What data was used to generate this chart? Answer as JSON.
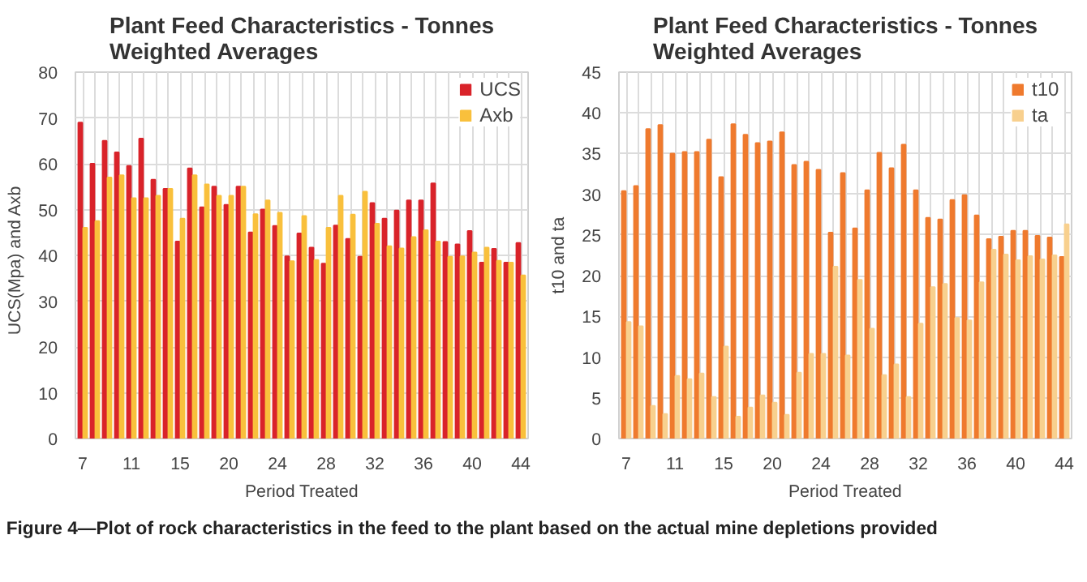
{
  "chart_data": [
    {
      "type": "bar",
      "title": "Plant Feed Characteristics - Tonnes\nWeighted Averages",
      "xlabel": "Period Treated",
      "ylabel": "UCS(Mpa)  and  Axb",
      "categories": [
        "7",
        null,
        null,
        null,
        "11",
        null,
        null,
        null,
        "15",
        null,
        null,
        null,
        "20",
        null,
        null,
        null,
        "24",
        null,
        null,
        null,
        "28",
        null,
        null,
        null,
        "32",
        null,
        null,
        null,
        "36",
        null,
        null,
        null,
        "40",
        null,
        null,
        null,
        "44"
      ],
      "series": [
        {
          "name": "UCS",
          "color": "#d9232a",
          "values": [
            69,
            60,
            65,
            62.5,
            59.5,
            65.5,
            56.5,
            54.5,
            43,
            59,
            50.5,
            55,
            51,
            55,
            45,
            50,
            46.4,
            39.8,
            44.8,
            41.7,
            38.2,
            46.5,
            43.6,
            39.7,
            51.4,
            48,
            49.8,
            52,
            52,
            55.7,
            42.9,
            42.4,
            45.3,
            38.4,
            41.4,
            38.4,
            42.7
          ]
        },
        {
          "name": "Axb",
          "color": "#f9c03c",
          "values": [
            46,
            47.5,
            57,
            57.5,
            52.5,
            52.5,
            53,
            54.5,
            48,
            57.5,
            55.5,
            53,
            53,
            55,
            49,
            52,
            49.3,
            38.7,
            48.6,
            39,
            46,
            53,
            48.9,
            53.9,
            46.9,
            42,
            41.5,
            44,
            45.5,
            43,
            39.7,
            39.8,
            40.6,
            41.7,
            38.8,
            38.4,
            35.6
          ]
        }
      ],
      "ylim": [
        0,
        80
      ],
      "yticks": [
        0,
        10,
        20,
        30,
        40,
        50,
        60,
        70,
        80
      ],
      "grid": true,
      "legend": "top right"
    },
    {
      "type": "bar",
      "title": "Plant Feed Characteristics - Tonnes\nWeighted Averages",
      "xlabel": "Period Treated",
      "ylabel": "t10 and ta",
      "categories": [
        "7",
        null,
        null,
        null,
        "11",
        null,
        null,
        null,
        "15",
        null,
        null,
        null,
        "20",
        null,
        null,
        null,
        "24",
        null,
        null,
        null,
        "28",
        null,
        null,
        null,
        "32",
        null,
        null,
        null,
        "36",
        null,
        null,
        null,
        "40",
        null,
        null,
        null,
        "44"
      ],
      "series": [
        {
          "name": "t10",
          "color": "#ef7a2e",
          "values": [
            30.4,
            31,
            38,
            38.5,
            35,
            35.2,
            35.2,
            36.7,
            32.1,
            38.6,
            37.3,
            36.3,
            36.5,
            37.6,
            33.6,
            34,
            33,
            25.3,
            32.6,
            25.8,
            30.5,
            35.1,
            33.2,
            36.1,
            30.5,
            27.1,
            26.9,
            29.3,
            29.9,
            27.4,
            24.5,
            24.8,
            25.5,
            25.5,
            24.9,
            24.7,
            22.3
          ]
        },
        {
          "name": "ta",
          "color": "#f8d08e",
          "values": [
            14.3,
            13.8,
            4,
            3,
            7.7,
            7.3,
            8,
            5.1,
            11.3,
            2.7,
            3.8,
            5.3,
            4.4,
            2.9,
            8.1,
            10.4,
            10.4,
            21.1,
            10.2,
            19.5,
            13.5,
            7.8,
            9.1,
            5.1,
            14.1,
            18.6,
            19,
            14.8,
            14.5,
            19.2,
            23.2,
            22.6,
            21.9,
            22.4,
            22,
            22.5,
            26.3
          ]
        }
      ],
      "ylim": [
        0,
        45
      ],
      "yticks": [
        0,
        5,
        10,
        15,
        20,
        25,
        30,
        35,
        40,
        45
      ],
      "grid": true,
      "legend": "top right",
      "annotations": [
        "Figure 4—Plot of rock characteristics in the feed to the plant based on the actual mine depletions provided"
      ]
    }
  ]
}
